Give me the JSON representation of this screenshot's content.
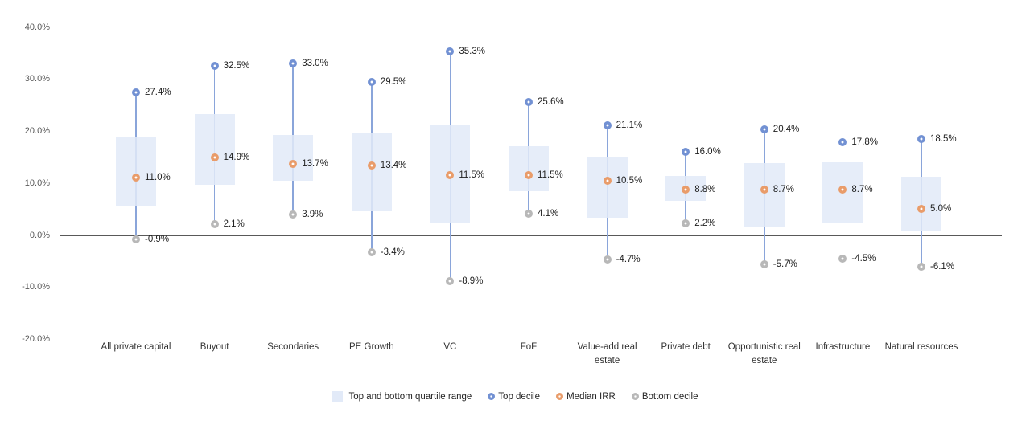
{
  "chart_data": {
    "type": "box",
    "title": "",
    "xlabel": "",
    "ylabel": "",
    "ylim": [
      -20,
      40
    ],
    "grid": false,
    "legend_position": "bottom",
    "y_ticks": [
      {
        "label": "40.0%",
        "value": 40
      },
      {
        "label": "30.0%",
        "value": 30
      },
      {
        "label": "20.0%",
        "value": 20
      },
      {
        "label": "10.0%",
        "value": 10
      },
      {
        "label": "0.0%",
        "value": 0
      },
      {
        "label": "-10.0%",
        "value": -10
      },
      {
        "label": "-20.0%",
        "value": -20
      }
    ],
    "categories": [
      "All private capital",
      "Buyout",
      "Secondaries",
      "PE Growth",
      "VC",
      "FoF",
      "Value-add real estate",
      "Private debt",
      "Opportunistic real estate",
      "Infrastructure",
      "Natural resources"
    ],
    "points": [
      {
        "category": "All private capital",
        "top_decile": 27.4,
        "median": 11.0,
        "bottom_decile": -0.9,
        "quartile_top": 19.0,
        "quartile_bottom": 5.6,
        "top_label": "27.4%",
        "median_label": "11.0%",
        "bottom_label": "-0.9%"
      },
      {
        "category": "Buyout",
        "top_decile": 32.5,
        "median": 14.9,
        "bottom_decile": 2.1,
        "quartile_top": 23.3,
        "quartile_bottom": 9.6,
        "top_label": "32.5%",
        "median_label": "14.9%",
        "bottom_label": "2.1%"
      },
      {
        "category": "Secondaries",
        "top_decile": 33.0,
        "median": 13.7,
        "bottom_decile": 3.9,
        "quartile_top": 19.3,
        "quartile_bottom": 10.5,
        "top_label": "33.0%",
        "median_label": "13.7%",
        "bottom_label": "3.9%"
      },
      {
        "category": "PE Growth",
        "top_decile": 29.5,
        "median": 13.4,
        "bottom_decile": -3.4,
        "quartile_top": 19.6,
        "quartile_bottom": 4.5,
        "top_label": "29.5%",
        "median_label": "13.4%",
        "bottom_label": "-3.4%"
      },
      {
        "category": "VC",
        "top_decile": 35.3,
        "median": 11.5,
        "bottom_decile": -8.9,
        "quartile_top": 21.2,
        "quartile_bottom": 2.4,
        "top_label": "35.3%",
        "median_label": "11.5%",
        "bottom_label": "-8.9%"
      },
      {
        "category": "FoF",
        "top_decile": 25.6,
        "median": 11.5,
        "bottom_decile": 4.1,
        "quartile_top": 17.1,
        "quartile_bottom": 8.5,
        "top_label": "25.6%",
        "median_label": "11.5%",
        "bottom_label": "4.1%"
      },
      {
        "category": "Value-add real estate",
        "top_decile": 21.1,
        "median": 10.5,
        "bottom_decile": -4.7,
        "quartile_top": 15.1,
        "quartile_bottom": 3.3,
        "top_label": "21.1%",
        "median_label": "10.5%",
        "bottom_label": "-4.7%"
      },
      {
        "category": "Private debt",
        "top_decile": 16.0,
        "median": 8.8,
        "bottom_decile": 2.2,
        "quartile_top": 11.3,
        "quartile_bottom": 6.6,
        "top_label": "16.0%",
        "median_label": "8.8%",
        "bottom_label": "2.2%"
      },
      {
        "category": "Opportunistic real estate",
        "top_decile": 20.4,
        "median": 8.7,
        "bottom_decile": -5.7,
        "quartile_top": 13.9,
        "quartile_bottom": 1.5,
        "top_label": "20.4%",
        "median_label": "8.7%",
        "bottom_label": "-5.7%"
      },
      {
        "category": "Infrastructure",
        "top_decile": 17.8,
        "median": 8.7,
        "bottom_decile": -4.5,
        "quartile_top": 14.0,
        "quartile_bottom": 2.2,
        "top_label": "17.8%",
        "median_label": "8.7%",
        "bottom_label": "-4.5%"
      },
      {
        "category": "Natural resources",
        "top_decile": 18.5,
        "median": 5.0,
        "bottom_decile": -6.1,
        "quartile_top": 11.2,
        "quartile_bottom": 0.8,
        "top_label": "18.5%",
        "median_label": "5.0%",
        "bottom_label": "-6.1%"
      }
    ],
    "legend": [
      {
        "label": "Top and bottom quartile range",
        "swatch": "box",
        "color": "#e2eaf8"
      },
      {
        "label": "Top decile",
        "swatch": "dot",
        "color": "#7291d3"
      },
      {
        "label": "Median IRR",
        "swatch": "dot",
        "color": "#e99c6a"
      },
      {
        "label": "Bottom decile",
        "swatch": "dot",
        "color": "#b8b8b8"
      }
    ],
    "colors": {
      "box_fill": "#e6ecf7",
      "stem": "#8aa5da",
      "top_decile": "#7291d3",
      "median": "#e99c6a",
      "bottom_decile": "#b8b8b8",
      "zero_line": "#595959",
      "axis_line": "#d9d9d9"
    }
  }
}
